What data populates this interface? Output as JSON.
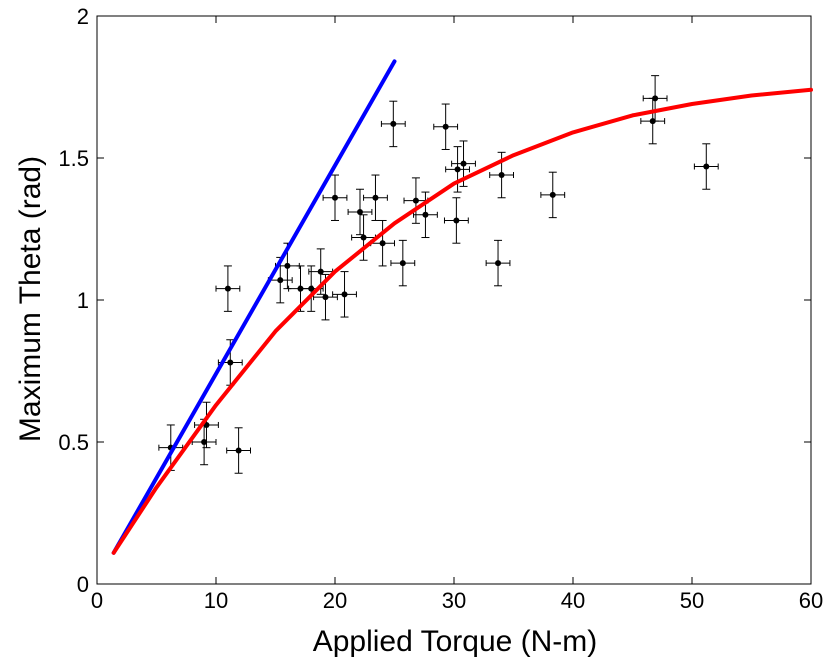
{
  "chart_data": {
    "type": "scatter",
    "title": "",
    "xlabel": "Applied Torque (N-m)",
    "ylabel": "Maximum Theta (rad)",
    "xlim": [
      0,
      60
    ],
    "ylim": [
      0,
      2
    ],
    "xticks": [
      "0",
      "10",
      "20",
      "30",
      "40",
      "50",
      "60"
    ],
    "yticks": [
      "0",
      "0.5",
      "1",
      "1.5",
      "2"
    ],
    "grid": false,
    "legend": "none",
    "colors": {
      "points": "#000000",
      "linear_fit": "#0000ff",
      "curve_fit": "#ff0000",
      "axes": "#000000",
      "background": "#ffffff"
    },
    "error_bars": {
      "x": 1.0,
      "y": 0.08
    },
    "series": [
      {
        "type": "scatter",
        "color": "#000000",
        "points": [
          [
            6.2,
            0.48
          ],
          [
            9.0,
            0.5
          ],
          [
            9.2,
            0.56
          ],
          [
            11.2,
            0.78
          ],
          [
            11.9,
            0.47
          ],
          [
            11.0,
            1.04
          ],
          [
            15.4,
            1.07
          ],
          [
            16.0,
            1.12
          ],
          [
            17.1,
            1.04
          ],
          [
            18.0,
            1.04
          ],
          [
            18.8,
            1.1
          ],
          [
            19.2,
            1.01
          ],
          [
            20.8,
            1.02
          ],
          [
            20.0,
            1.36
          ],
          [
            22.1,
            1.31
          ],
          [
            22.4,
            1.22
          ],
          [
            23.4,
            1.36
          ],
          [
            24.0,
            1.2
          ],
          [
            24.9,
            1.62
          ],
          [
            25.7,
            1.13
          ],
          [
            26.8,
            1.35
          ],
          [
            27.6,
            1.3
          ],
          [
            29.3,
            1.61
          ],
          [
            30.2,
            1.28
          ],
          [
            30.3,
            1.46
          ],
          [
            30.8,
            1.48
          ],
          [
            33.7,
            1.13
          ],
          [
            34.0,
            1.44
          ],
          [
            38.3,
            1.37
          ],
          [
            46.7,
            1.63
          ],
          [
            46.9,
            1.71
          ],
          [
            51.2,
            1.47
          ]
        ]
      },
      {
        "type": "line",
        "color": "#0000ff",
        "points": [
          [
            1.4,
            0.11
          ],
          [
            25.0,
            1.84
          ]
        ]
      },
      {
        "type": "line",
        "color": "#ff0000",
        "points": [
          [
            1.4,
            0.11
          ],
          [
            5,
            0.34
          ],
          [
            10,
            0.63
          ],
          [
            15,
            0.89
          ],
          [
            20,
            1.1
          ],
          [
            25,
            1.27
          ],
          [
            30,
            1.41
          ],
          [
            35,
            1.51
          ],
          [
            40,
            1.59
          ],
          [
            45,
            1.65
          ],
          [
            50,
            1.69
          ],
          [
            55,
            1.72
          ],
          [
            60,
            1.74
          ]
        ]
      }
    ]
  }
}
